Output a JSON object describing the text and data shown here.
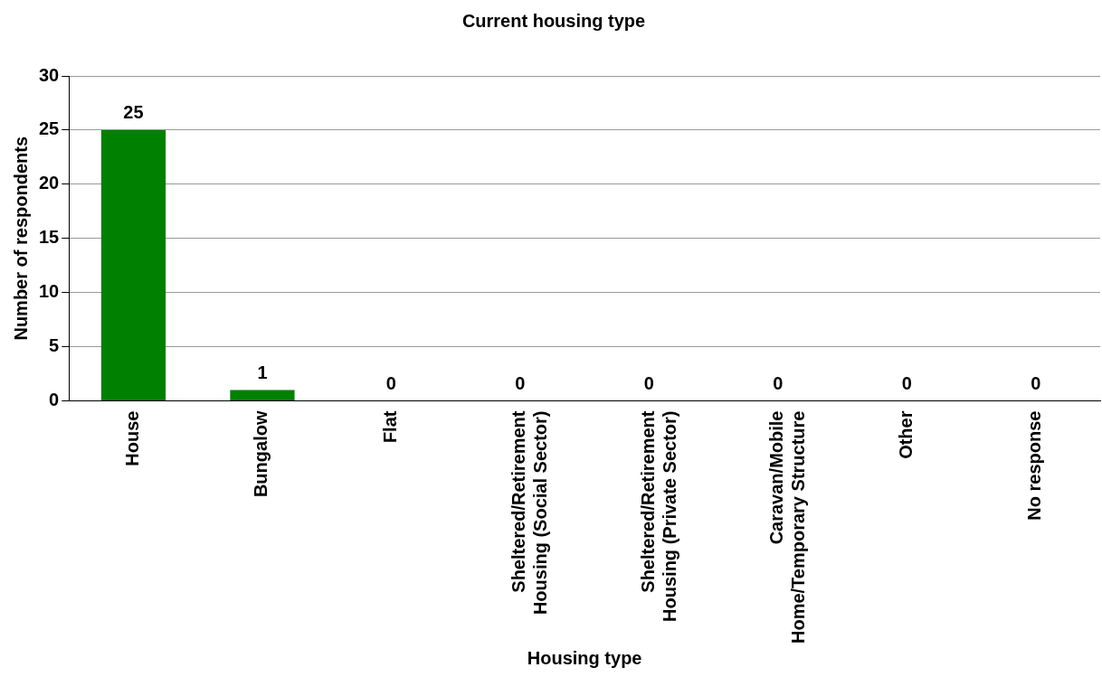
{
  "chart_data": {
    "type": "bar",
    "title": "Current housing type",
    "xlabel": "Housing type",
    "ylabel": "Number of respondents",
    "categories": [
      "House",
      "Bungalow",
      "Flat",
      "Sheltered/Retirement Housing (Social Sector)",
      "Sheltered/Retirement Housing (Private Sector)",
      "Caravan/Mobile Home/Temporary Structure",
      "Other",
      "No response"
    ],
    "values": [
      25,
      1,
      0,
      0,
      0,
      0,
      0,
      0
    ],
    "color": "#008000",
    "ylim": [
      0,
      30
    ],
    "yticks": [
      0,
      5,
      10,
      15,
      20,
      25,
      30
    ],
    "grid": "y",
    "data_labels": true
  }
}
